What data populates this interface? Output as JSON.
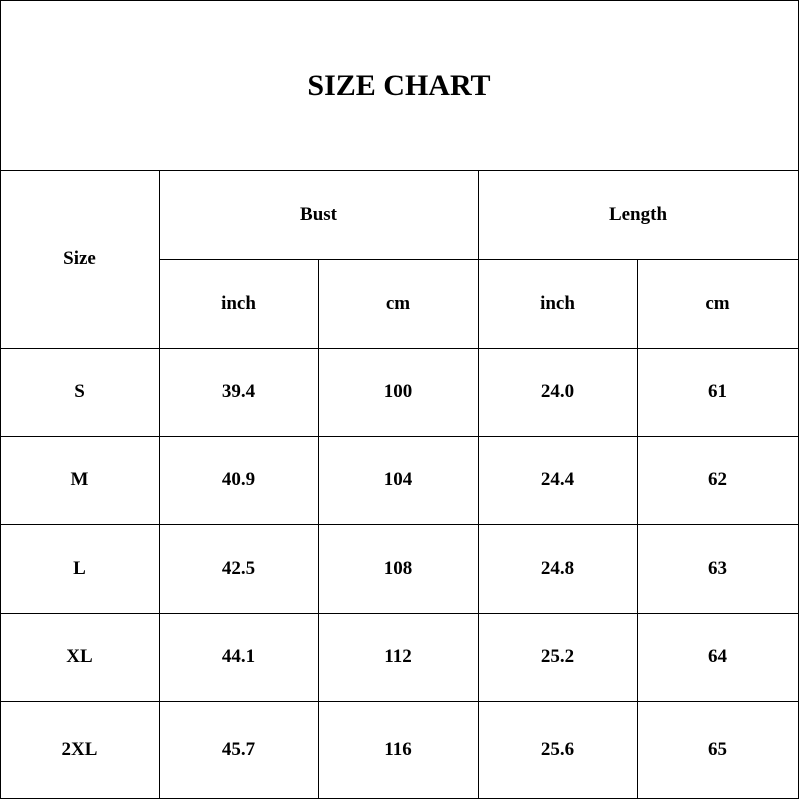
{
  "title": "SIZE CHART",
  "headers": {
    "size": "Size",
    "groups": [
      "Bust",
      "Length"
    ],
    "units": [
      "inch",
      "cm",
      "inch",
      "cm"
    ]
  },
  "rows": [
    {
      "size": "S",
      "values": [
        "39.4",
        "100",
        "24.0",
        "61"
      ]
    },
    {
      "size": "M",
      "values": [
        "40.9",
        "104",
        "24.4",
        "62"
      ]
    },
    {
      "size": "L",
      "values": [
        "42.5",
        "108",
        "24.8",
        "63"
      ]
    },
    {
      "size": "XL",
      "values": [
        "44.1",
        "112",
        "25.2",
        "64"
      ]
    },
    {
      "size": "2XL",
      "values": [
        "45.7",
        "116",
        "25.6",
        "65"
      ]
    }
  ]
}
